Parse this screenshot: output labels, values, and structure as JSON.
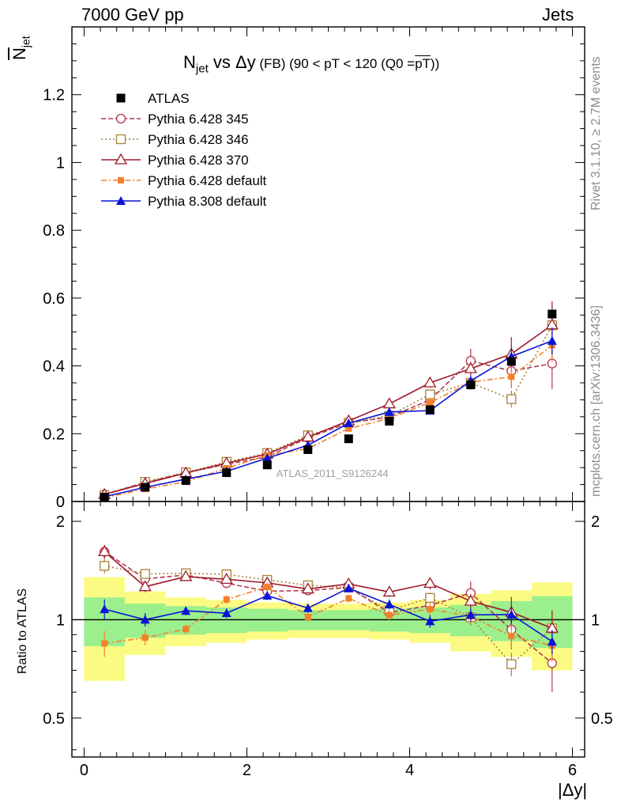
{
  "header": {
    "left": "7000 GeV pp",
    "right": "Jets"
  },
  "side_labels": {
    "rivet": "Rivet 3.1.10, ≥ 2.7M events",
    "mcplots": "mcplots.cern.ch [arXiv:1306.3436]"
  },
  "chart_data": {
    "type": "line",
    "title_main": "N",
    "title_sub": "jet",
    "title_rest": " vs Δy",
    "title_small": " (FB)  (90 < pT < 120 (Q0 =",
    "title_over": "pT",
    "title_end": "))",
    "ylabel_main": "N",
    "ylabel_sub": "jet",
    "xlabel": "|Δy|",
    "ratio_ylabel": "Ratio to ATLAS",
    "watermark": "ATLAS_2011_S9126244",
    "xlim": [
      -0.15,
      6.15
    ],
    "ylim": [
      0,
      1.4
    ],
    "ratio_ylim": [
      0.38,
      2.3
    ],
    "ratio_log": true,
    "x_ticks": [
      "0",
      "2",
      "4",
      "6"
    ],
    "y_ticks": [
      "0",
      "0.2",
      "0.4",
      "0.6",
      "0.8",
      "1",
      "1.2"
    ],
    "ratio_ticks": [
      "0.5",
      "1",
      "2"
    ],
    "legend_position": "top-left",
    "x": [
      0.25,
      0.75,
      1.25,
      1.75,
      2.25,
      2.75,
      3.25,
      3.75,
      4.25,
      4.75,
      5.25,
      5.75
    ],
    "data": {
      "name": "ATLAS",
      "color": "#000000",
      "values": [
        0.013,
        0.042,
        0.062,
        0.085,
        0.108,
        0.153,
        0.185,
        0.237,
        0.271,
        0.344,
        0.413,
        0.553
      ],
      "errors": [
        0.001,
        0.002,
        0.002,
        0.003,
        0.003,
        0.004,
        0.005,
        0.006,
        0.007,
        0.009,
        0.012,
        0.018
      ]
    },
    "band_inner": [
      0.17,
      0.12,
      0.1,
      0.09,
      0.08,
      0.07,
      0.07,
      0.08,
      0.09,
      0.11,
      0.14,
      0.18
    ],
    "band_outer": [
      0.35,
      0.22,
      0.17,
      0.15,
      0.13,
      0.12,
      0.12,
      0.13,
      0.15,
      0.2,
      0.23,
      0.3
    ],
    "series": [
      {
        "name": "Pythia 6.428 345",
        "color": "#b5364e",
        "dash": "6,3",
        "marker": "circle",
        "values": [
          0.021,
          0.056,
          0.085,
          0.11,
          0.132,
          0.188,
          0.232,
          0.249,
          0.3,
          0.415,
          0.385,
          0.407
        ],
        "errors": [
          0.001,
          0.002,
          0.002,
          0.003,
          0.004,
          0.005,
          0.007,
          0.009,
          0.012,
          0.035,
          0.05,
          0.075
        ]
      },
      {
        "name": "Pythia 6.428 346",
        "color": "#a98139",
        "dash": "2,3",
        "marker": "square-open",
        "values": [
          0.019,
          0.058,
          0.086,
          0.117,
          0.143,
          0.195,
          0.232,
          0.253,
          0.316,
          0.35,
          0.302,
          0.52
        ],
        "errors": [
          0.001,
          0.002,
          0.002,
          0.003,
          0.004,
          0.005,
          0.007,
          0.009,
          0.012,
          0.02,
          0.025,
          0.035
        ]
      },
      {
        "name": "Pythia 6.428 370",
        "color": "#9e1828",
        "dash": "",
        "marker": "triangle-open",
        "values": [
          0.021,
          0.053,
          0.084,
          0.113,
          0.14,
          0.19,
          0.238,
          0.288,
          0.35,
          0.392,
          0.435,
          0.521
        ],
        "errors": [
          0.001,
          0.002,
          0.002,
          0.003,
          0.004,
          0.005,
          0.007,
          0.01,
          0.014,
          0.02,
          0.05,
          0.07
        ]
      },
      {
        "name": "Pythia 6.428 default",
        "color": "#f4812a",
        "dash": "7,3,2,3",
        "marker": "square",
        "values": [
          0.011,
          0.037,
          0.058,
          0.098,
          0.136,
          0.156,
          0.215,
          0.245,
          0.292,
          0.352,
          0.368,
          0.461
        ],
        "errors": [
          0.001,
          0.002,
          0.002,
          0.003,
          0.004,
          0.005,
          0.006,
          0.009,
          0.012,
          0.015,
          0.03,
          0.05
        ]
      },
      {
        "name": "Pythia 8.308 default",
        "color": "#0a14d6",
        "dash": "",
        "marker": "triangle",
        "values": [
          0.014,
          0.042,
          0.066,
          0.089,
          0.128,
          0.166,
          0.231,
          0.264,
          0.268,
          0.356,
          0.428,
          0.474
        ],
        "errors": [
          0.001,
          0.002,
          0.002,
          0.003,
          0.004,
          0.005,
          0.007,
          0.009,
          0.012,
          0.016,
          0.025,
          0.04
        ]
      }
    ]
  }
}
